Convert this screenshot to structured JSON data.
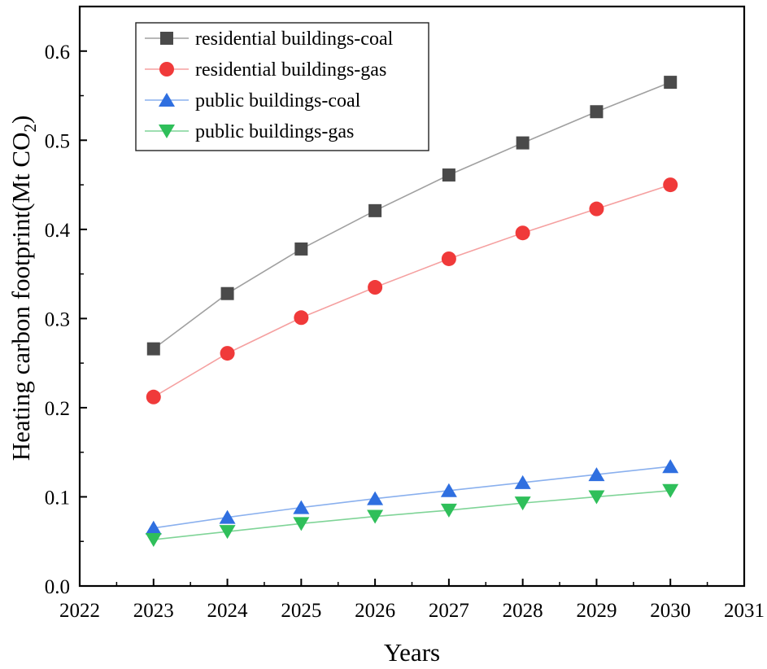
{
  "chart_data": {
    "type": "line",
    "title": "",
    "xlabel": "Years",
    "ylabel": "Heating carbon footprint(Mt CO",
    "ylabel_subscript": "2",
    "ylabel_suffix": ")",
    "xlim": [
      2022,
      2031
    ],
    "ylim": [
      0.0,
      0.65
    ],
    "x_ticks": [
      2022,
      2023,
      2024,
      2025,
      2026,
      2027,
      2028,
      2029,
      2030,
      2031
    ],
    "x_tick_labels": [
      "2022",
      "2023",
      "2024",
      "2025",
      "2026",
      "2027",
      "2028",
      "2029",
      "2030",
      "2031"
    ],
    "y_ticks": [
      0.0,
      0.1,
      0.2,
      0.3,
      0.4,
      0.5,
      0.6
    ],
    "y_tick_labels": [
      "0.0",
      "0.1",
      "0.2",
      "0.3",
      "0.4",
      "0.5",
      "0.6"
    ],
    "grid": false,
    "legend_position": "top-left",
    "x": [
      2023,
      2024,
      2025,
      2026,
      2027,
      2028,
      2029,
      2030
    ],
    "series": [
      {
        "name": "residential buildings-coal",
        "marker": "square",
        "marker_color": "#4a4a4a",
        "line_color": "#a0a0a0",
        "values": [
          0.266,
          0.328,
          0.378,
          0.421,
          0.461,
          0.497,
          0.532,
          0.565
        ]
      },
      {
        "name": "residential buildings-gas",
        "marker": "circle",
        "marker_color": "#f03a3a",
        "line_color": "#f5a0a0",
        "values": [
          0.212,
          0.261,
          0.301,
          0.335,
          0.367,
          0.396,
          0.423,
          0.45
        ]
      },
      {
        "name": "public buildings-coal",
        "marker": "triangle-up",
        "marker_color": "#2f6fe0",
        "line_color": "#8ab0ee",
        "values": [
          0.065,
          0.077,
          0.088,
          0.098,
          0.107,
          0.116,
          0.125,
          0.134
        ]
      },
      {
        "name": "public buildings-gas",
        "marker": "triangle-down",
        "marker_color": "#2fbf5a",
        "line_color": "#7fd497",
        "values": [
          0.052,
          0.061,
          0.07,
          0.078,
          0.085,
          0.093,
          0.1,
          0.107
        ]
      }
    ]
  }
}
